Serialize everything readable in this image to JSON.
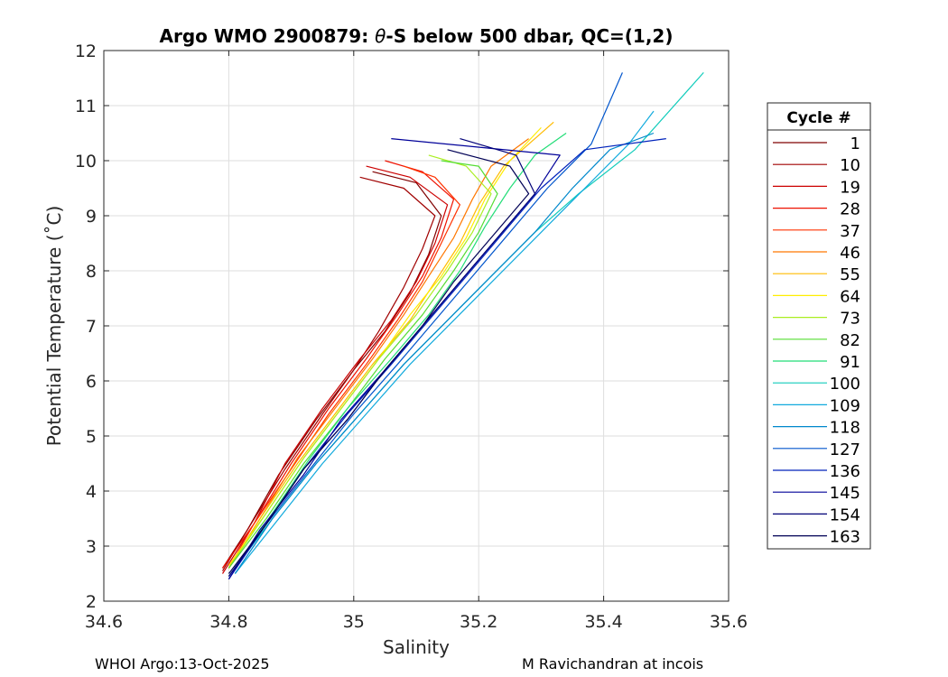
{
  "chart_data": {
    "type": "line",
    "title_prefix": "Argo WMO 2900879: ",
    "title_symbol": "θ",
    "title_suffix": "-S below 500 dbar,  QC=(1,2)",
    "xlabel": "Salinity",
    "ylabel": "Potential Temperature (˚C)",
    "xlim": [
      34.6,
      35.6
    ],
    "ylim": [
      2,
      12
    ],
    "xticks": [
      34.6,
      34.8,
      35.0,
      35.2,
      35.4,
      35.6
    ],
    "xtick_labels": [
      "34.6",
      "34.8",
      "35",
      "35.2",
      "35.4",
      "35.6"
    ],
    "yticks": [
      2,
      3,
      4,
      5,
      6,
      7,
      8,
      9,
      10,
      11,
      12
    ],
    "ytick_labels": [
      "2",
      "3",
      "4",
      "5",
      "6",
      "7",
      "8",
      "9",
      "10",
      "11",
      "12"
    ],
    "grid": true,
    "legend_title": "Cycle #",
    "legend_position": "right-outside",
    "series": [
      {
        "name": "1",
        "color": "#800000",
        "points": [
          [
            34.79,
            2.6
          ],
          [
            34.83,
            3.3
          ],
          [
            34.88,
            4.3
          ],
          [
            34.94,
            5.3
          ],
          [
            35.0,
            6.2
          ],
          [
            35.05,
            6.9
          ],
          [
            35.09,
            7.6
          ],
          [
            35.12,
            8.3
          ],
          [
            35.14,
            9.0
          ],
          [
            35.1,
            9.6
          ],
          [
            35.03,
            9.8
          ]
        ]
      },
      {
        "name": "10",
        "color": "#a00000",
        "points": [
          [
            34.79,
            2.55
          ],
          [
            34.83,
            3.3
          ],
          [
            34.89,
            4.4
          ],
          [
            34.95,
            5.4
          ],
          [
            35.0,
            6.2
          ],
          [
            35.04,
            6.9
          ],
          [
            35.08,
            7.7
          ],
          [
            35.11,
            8.4
          ],
          [
            35.13,
            9.0
          ],
          [
            35.08,
            9.5
          ],
          [
            35.01,
            9.7
          ]
        ]
      },
      {
        "name": "19",
        "color": "#cc0000",
        "points": [
          [
            34.79,
            2.5
          ],
          [
            34.84,
            3.4
          ],
          [
            34.89,
            4.5
          ],
          [
            34.95,
            5.5
          ],
          [
            35.01,
            6.4
          ],
          [
            35.06,
            7.1
          ],
          [
            35.1,
            7.8
          ],
          [
            35.13,
            8.5
          ],
          [
            35.15,
            9.2
          ],
          [
            35.09,
            9.7
          ],
          [
            35.02,
            9.9
          ]
        ]
      },
      {
        "name": "28",
        "color": "#ee1100",
        "points": [
          [
            34.79,
            2.6
          ],
          [
            34.84,
            3.4
          ],
          [
            34.9,
            4.5
          ],
          [
            34.96,
            5.5
          ],
          [
            35.02,
            6.4
          ],
          [
            35.07,
            7.2
          ],
          [
            35.11,
            7.9
          ],
          [
            35.14,
            8.6
          ],
          [
            35.16,
            9.3
          ],
          [
            35.11,
            9.8
          ],
          [
            35.05,
            10.0
          ]
        ]
      },
      {
        "name": "37",
        "color": "#ff3300",
        "points": [
          [
            34.8,
            2.6
          ],
          [
            34.84,
            3.4
          ],
          [
            34.9,
            4.4
          ],
          [
            34.96,
            5.4
          ],
          [
            35.02,
            6.3
          ],
          [
            35.07,
            7.1
          ],
          [
            35.11,
            7.8
          ],
          [
            35.14,
            8.5
          ],
          [
            35.17,
            9.2
          ],
          [
            35.13,
            9.7
          ],
          [
            35.08,
            9.9
          ]
        ]
      },
      {
        "name": "46",
        "color": "#ff7700",
        "points": [
          [
            34.8,
            2.6
          ],
          [
            34.85,
            3.5
          ],
          [
            34.91,
            4.6
          ],
          [
            34.97,
            5.5
          ],
          [
            35.03,
            6.4
          ],
          [
            35.08,
            7.2
          ],
          [
            35.12,
            7.9
          ],
          [
            35.16,
            8.6
          ],
          [
            35.19,
            9.3
          ],
          [
            35.22,
            9.9
          ],
          [
            35.28,
            10.4
          ]
        ]
      },
      {
        "name": "55",
        "color": "#ffbb00",
        "points": [
          [
            34.8,
            2.6
          ],
          [
            34.85,
            3.5
          ],
          [
            34.91,
            4.5
          ],
          [
            34.97,
            5.4
          ],
          [
            35.03,
            6.3
          ],
          [
            35.09,
            7.1
          ],
          [
            35.13,
            7.8
          ],
          [
            35.17,
            8.5
          ],
          [
            35.2,
            9.2
          ],
          [
            35.24,
            9.9
          ],
          [
            35.32,
            10.7
          ]
        ]
      },
      {
        "name": "64",
        "color": "#ffee00",
        "points": [
          [
            34.8,
            2.65
          ],
          [
            34.86,
            3.6
          ],
          [
            34.92,
            4.6
          ],
          [
            34.98,
            5.5
          ],
          [
            35.04,
            6.4
          ],
          [
            35.09,
            7.2
          ],
          [
            35.14,
            7.9
          ],
          [
            35.18,
            8.6
          ],
          [
            35.21,
            9.3
          ],
          [
            35.25,
            10.0
          ],
          [
            35.3,
            10.6
          ]
        ]
      },
      {
        "name": "73",
        "color": "#aaee22",
        "points": [
          [
            34.8,
            2.6
          ],
          [
            34.86,
            3.6
          ],
          [
            34.92,
            4.6
          ],
          [
            34.98,
            5.5
          ],
          [
            35.04,
            6.4
          ],
          [
            35.1,
            7.2
          ],
          [
            35.15,
            8.0
          ],
          [
            35.19,
            8.7
          ],
          [
            35.22,
            9.4
          ],
          [
            35.18,
            9.9
          ],
          [
            35.12,
            10.1
          ]
        ]
      },
      {
        "name": "82",
        "color": "#55dd33",
        "points": [
          [
            34.8,
            2.6
          ],
          [
            34.86,
            3.5
          ],
          [
            34.92,
            4.5
          ],
          [
            34.99,
            5.5
          ],
          [
            35.05,
            6.4
          ],
          [
            35.11,
            7.2
          ],
          [
            35.16,
            8.0
          ],
          [
            35.2,
            8.7
          ],
          [
            35.23,
            9.4
          ],
          [
            35.2,
            9.9
          ],
          [
            35.14,
            10.0
          ]
        ]
      },
      {
        "name": "91",
        "color": "#22dd77",
        "points": [
          [
            34.81,
            2.6
          ],
          [
            34.87,
            3.6
          ],
          [
            34.93,
            4.6
          ],
          [
            34.99,
            5.5
          ],
          [
            35.06,
            6.4
          ],
          [
            35.12,
            7.2
          ],
          [
            35.17,
            8.0
          ],
          [
            35.21,
            8.8
          ],
          [
            35.25,
            9.5
          ],
          [
            35.29,
            10.1
          ],
          [
            35.34,
            10.5
          ]
        ]
      },
      {
        "name": "100",
        "color": "#11ccbb",
        "points": [
          [
            34.81,
            2.6
          ],
          [
            34.87,
            3.5
          ],
          [
            34.94,
            4.5
          ],
          [
            35.01,
            5.4
          ],
          [
            35.08,
            6.3
          ],
          [
            35.15,
            7.1
          ],
          [
            35.22,
            7.9
          ],
          [
            35.29,
            8.7
          ],
          [
            35.36,
            9.4
          ],
          [
            35.45,
            10.2
          ],
          [
            35.56,
            11.6
          ]
        ]
      },
      {
        "name": "109",
        "color": "#11aadd",
        "points": [
          [
            34.81,
            2.5
          ],
          [
            34.88,
            3.5
          ],
          [
            34.95,
            4.5
          ],
          [
            35.02,
            5.4
          ],
          [
            35.09,
            6.3
          ],
          [
            35.16,
            7.1
          ],
          [
            35.23,
            7.9
          ],
          [
            35.3,
            8.7
          ],
          [
            35.37,
            9.5
          ],
          [
            35.44,
            10.3
          ],
          [
            35.48,
            10.9
          ]
        ]
      },
      {
        "name": "118",
        "color": "#0088cc",
        "points": [
          [
            34.81,
            2.5
          ],
          [
            34.87,
            3.5
          ],
          [
            34.94,
            4.5
          ],
          [
            35.01,
            5.4
          ],
          [
            35.08,
            6.3
          ],
          [
            35.15,
            7.1
          ],
          [
            35.22,
            7.9
          ],
          [
            35.29,
            8.7
          ],
          [
            35.35,
            9.5
          ],
          [
            35.41,
            10.2
          ],
          [
            35.48,
            10.5
          ]
        ]
      },
      {
        "name": "127",
        "color": "#0055cc",
        "points": [
          [
            34.8,
            2.45
          ],
          [
            34.86,
            3.4
          ],
          [
            34.93,
            4.4
          ],
          [
            35.0,
            5.4
          ],
          [
            35.07,
            6.3
          ],
          [
            35.13,
            7.1
          ],
          [
            35.19,
            7.9
          ],
          [
            35.25,
            8.7
          ],
          [
            35.31,
            9.5
          ],
          [
            35.38,
            10.3
          ],
          [
            35.43,
            11.6
          ]
        ]
      },
      {
        "name": "136",
        "color": "#0022bb",
        "points": [
          [
            34.8,
            2.4
          ],
          [
            34.86,
            3.4
          ],
          [
            34.92,
            4.4
          ],
          [
            34.99,
            5.4
          ],
          [
            35.06,
            6.3
          ],
          [
            35.12,
            7.1
          ],
          [
            35.18,
            7.9
          ],
          [
            35.24,
            8.7
          ],
          [
            35.3,
            9.5
          ],
          [
            35.37,
            10.2
          ],
          [
            35.5,
            10.4
          ]
        ]
      },
      {
        "name": "145",
        "color": "#000099",
        "points": [
          [
            34.8,
            2.4
          ],
          [
            34.85,
            3.3
          ],
          [
            34.92,
            4.3
          ],
          [
            34.98,
            5.3
          ],
          [
            35.05,
            6.2
          ],
          [
            35.11,
            7.0
          ],
          [
            35.17,
            7.8
          ],
          [
            35.23,
            8.6
          ],
          [
            35.29,
            9.4
          ],
          [
            35.33,
            10.1
          ],
          [
            35.06,
            10.4
          ]
        ]
      },
      {
        "name": "154",
        "color": "#000077",
        "points": [
          [
            34.8,
            2.45
          ],
          [
            34.86,
            3.4
          ],
          [
            34.92,
            4.4
          ],
          [
            34.99,
            5.3
          ],
          [
            35.05,
            6.2
          ],
          [
            35.11,
            7.0
          ],
          [
            35.17,
            7.8
          ],
          [
            35.23,
            8.6
          ],
          [
            35.29,
            9.4
          ],
          [
            35.26,
            10.1
          ],
          [
            35.17,
            10.4
          ]
        ]
      },
      {
        "name": "163",
        "color": "#000055",
        "points": [
          [
            34.8,
            2.5
          ],
          [
            34.86,
            3.4
          ],
          [
            34.92,
            4.4
          ],
          [
            34.99,
            5.3
          ],
          [
            35.05,
            6.2
          ],
          [
            35.11,
            7.0
          ],
          [
            35.16,
            7.8
          ],
          [
            35.22,
            8.6
          ],
          [
            35.28,
            9.4
          ],
          [
            35.25,
            9.9
          ],
          [
            35.15,
            10.2
          ]
        ]
      }
    ]
  },
  "footer": {
    "left": "WHOI Argo:13-Oct-2025",
    "right": "M Ravichandran at incois"
  }
}
